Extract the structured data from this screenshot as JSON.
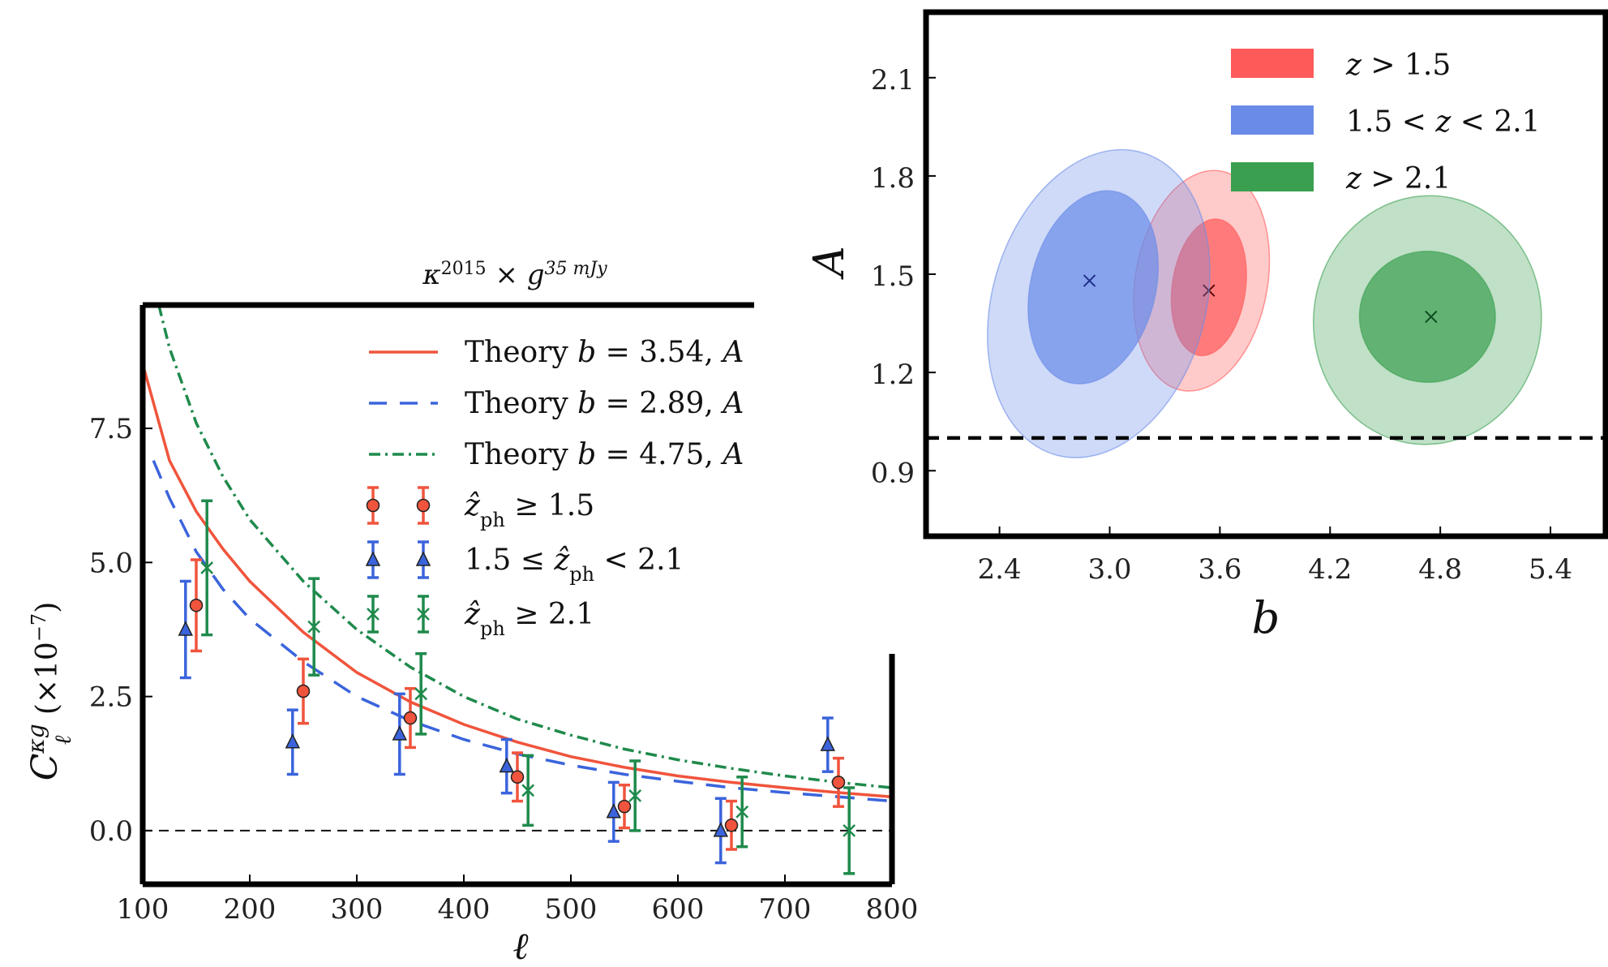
{
  "chart_data": [
    {
      "type": "line",
      "title": "κ^2015 × g^35mJy",
      "title_parts": {
        "kappa": "κ",
        "kappa_sup": "2015",
        "times": " × ",
        "g": "g",
        "g_sup": "35 mJy"
      },
      "xlabel": "ℓ",
      "ylabel_parts": {
        "C": "C",
        "sup": "κg",
        "sub": "ℓ",
        "scale": " (×10",
        "scale_sup": "−7",
        "close": ")"
      },
      "xlim": [
        100,
        800
      ],
      "ylim": [
        -1.0,
        9.8
      ],
      "xticks": [
        "100",
        "200",
        "300",
        "400",
        "500",
        "600",
        "700",
        "800"
      ],
      "yticks": [
        "0.0",
        "2.5",
        "5.0",
        "7.5"
      ],
      "grid": false,
      "legend_position": "top-right",
      "colors": {
        "red": "#f0543c",
        "blue": "#3b64dc",
        "green": "#1f8a4c"
      },
      "series": [
        {
          "name": "Theory b = 3.54, A",
          "kind": "solid",
          "color": "#f0543c",
          "x": [
            100,
            125,
            150,
            175,
            200,
            250,
            300,
            350,
            400,
            450,
            500,
            550,
            600,
            650,
            700,
            750,
            800
          ],
          "y": [
            8.7,
            6.9,
            5.95,
            5.25,
            4.65,
            3.7,
            2.95,
            2.4,
            1.98,
            1.65,
            1.38,
            1.18,
            1.02,
            0.9,
            0.8,
            0.71,
            0.63
          ]
        },
        {
          "name": "Theory b = 2.89, A",
          "kind": "dashed",
          "color": "#3b64dc",
          "x": [
            110,
            125,
            150,
            175,
            200,
            250,
            300,
            350,
            400,
            450,
            500,
            550,
            600,
            650,
            700,
            750,
            800
          ],
          "y": [
            6.9,
            6.2,
            5.2,
            4.5,
            3.95,
            3.15,
            2.5,
            2.05,
            1.7,
            1.43,
            1.22,
            1.05,
            0.92,
            0.8,
            0.71,
            0.63,
            0.55
          ]
        },
        {
          "name": "Theory b = 4.75, A",
          "kind": "dashdot",
          "color": "#1f8a4c",
          "x": [
            115,
            125,
            150,
            175,
            200,
            250,
            300,
            350,
            400,
            450,
            500,
            550,
            600,
            650,
            700,
            750,
            800
          ],
          "y": [
            9.8,
            9.0,
            7.6,
            6.6,
            5.8,
            4.65,
            3.75,
            3.05,
            2.5,
            2.08,
            1.78,
            1.52,
            1.32,
            1.16,
            1.02,
            0.9,
            0.8
          ]
        },
        {
          "name": "ẑ_ph ≥ 1.5",
          "kind": "errorbar",
          "marker": "circle",
          "color": "#f0543c",
          "x": [
            150,
            250,
            350,
            450,
            550,
            650,
            750
          ],
          "y": [
            4.2,
            2.6,
            2.1,
            1.0,
            0.45,
            0.1,
            0.9
          ],
          "err": [
            0.85,
            0.6,
            0.55,
            0.45,
            0.4,
            0.45,
            0.45
          ]
        },
        {
          "name": "1.5 ≤ ẑ_ph < 2.1",
          "kind": "errorbar",
          "marker": "triangle",
          "color": "#3b64dc",
          "x": [
            140,
            240,
            340,
            440,
            540,
            640,
            740
          ],
          "y": [
            3.75,
            1.65,
            1.8,
            1.2,
            0.35,
            0.0,
            1.6
          ],
          "err": [
            0.9,
            0.6,
            0.75,
            0.5,
            0.55,
            0.6,
            0.5
          ]
        },
        {
          "name": "ẑ_ph ≥ 2.1",
          "kind": "errorbar",
          "marker": "x",
          "color": "#1f8a4c",
          "x": [
            160,
            260,
            360,
            460,
            560,
            660,
            760
          ],
          "y": [
            4.9,
            3.8,
            2.55,
            0.75,
            0.65,
            0.35,
            0.0
          ],
          "err": [
            1.25,
            0.9,
            0.75,
            0.65,
            0.65,
            0.65,
            0.8
          ]
        }
      ],
      "legend": {
        "theory": [
          "Theory ",
          "b",
          " = 3.54, ",
          "A"
        ],
        "labels": [
          "Theory b = 3.54, A",
          "Theory b = 2.89, A",
          "Theory b = 4.75, A",
          "ẑ_ph ≥ 1.5",
          "1.5 ≤ ẑ_ph < 2.1",
          "ẑ_ph ≥ 2.1"
        ]
      },
      "reference_line": {
        "y": 0.0,
        "style": "dashed"
      }
    },
    {
      "type": "contour",
      "xlabel": "b",
      "ylabel": "A",
      "xlim": [
        2.0,
        5.7
      ],
      "ylim": [
        0.7,
        2.3
      ],
      "xticks": [
        "2.4",
        "3.0",
        "3.6",
        "4.2",
        "4.8",
        "5.4"
      ],
      "yticks": [
        "0.9",
        "1.2",
        "1.5",
        "1.8",
        "2.1"
      ],
      "grid": false,
      "legend_position": "top-right",
      "reference_line": {
        "y": 1.0,
        "style": "dashed"
      },
      "series": [
        {
          "name": "z > 1.5",
          "color": "#ff5a5a",
          "best_fit": {
            "b": 3.54,
            "A": 1.45
          },
          "outer": {
            "cx": 3.5,
            "cy": 1.48,
            "rx": 0.36,
            "ry": 0.34,
            "tilt": 10
          },
          "inner": {
            "cx": 3.54,
            "cy": 1.46,
            "rx": 0.2,
            "ry": 0.21,
            "tilt": 8
          }
        },
        {
          "name": "1.5 < z < 2.1",
          "color": "#6a8ce8",
          "best_fit": {
            "b": 2.89,
            "A": 1.48
          },
          "outer": {
            "cx": 2.94,
            "cy": 1.41,
            "rx": 0.58,
            "ry": 0.48,
            "tilt": 16
          },
          "inner": {
            "cx": 2.91,
            "cy": 1.46,
            "rx": 0.34,
            "ry": 0.3,
            "tilt": 14
          }
        },
        {
          "name": "z > 2.1",
          "color": "#3aa050",
          "best_fit": {
            "b": 4.75,
            "A": 1.37
          },
          "outer": {
            "cx": 4.73,
            "cy": 1.36,
            "rx": 0.62,
            "ry": 0.38,
            "tilt": 6
          },
          "inner": {
            "cx": 4.73,
            "cy": 1.37,
            "rx": 0.37,
            "ry": 0.2,
            "tilt": 4
          }
        }
      ],
      "legend": {
        "labels": [
          "z > 1.5",
          "1.5 < z < 2.1",
          "z > 2.1"
        ]
      }
    }
  ]
}
